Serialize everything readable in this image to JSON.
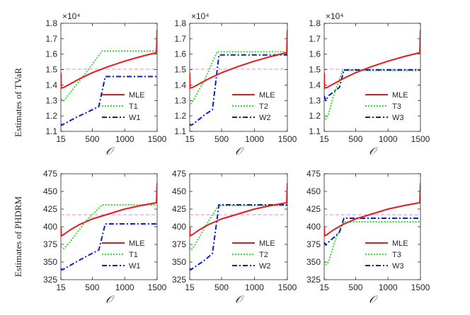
{
  "figure": {
    "shared_xlabel": "𝒪",
    "row_ylabels": [
      "Estimates of TVaR",
      "Estimates of PHDRM"
    ],
    "top_exponent": "×10⁴",
    "colors": {
      "MLE": "#e41a1c",
      "T": "#33dd33",
      "W": "#0b1fbf",
      "ref": "#ee82ee",
      "axis": "#262626"
    }
  },
  "chart_data": [
    {
      "type": "line",
      "title": "",
      "xlabel": "𝒪",
      "ylabel": "Estimates of TVaR",
      "xlim": [
        15,
        1500
      ],
      "xticks": [
        15,
        500,
        1000,
        1500
      ],
      "ylim": [
        1.1,
        1.8
      ],
      "yticks": [
        1.1,
        1.2,
        1.3,
        1.4,
        1.5,
        1.6,
        1.7,
        1.8
      ],
      "yticklabels": [
        "1.1",
        "1.2",
        "1.3",
        "1.4",
        "1.5",
        "1.6",
        "1.7",
        "1.8"
      ],
      "exponent_label": "×10⁴",
      "reference": 1.503,
      "series": [
        {
          "name": "MLE",
          "style": "solid",
          "x": [
            15,
            20,
            60,
            150,
            300,
            500,
            750,
            1000,
            1250,
            1490,
            1495,
            1500
          ],
          "y": [
            1.48,
            1.38,
            1.385,
            1.405,
            1.44,
            1.48,
            1.52,
            1.555,
            1.585,
            1.61,
            1.68,
            1.76
          ]
        },
        {
          "name": "T1",
          "style": "dotted",
          "x": [
            15,
            60,
            120,
            400,
            650,
            1500
          ],
          "y": [
            1.31,
            1.3,
            1.33,
            1.48,
            1.62,
            1.62
          ]
        },
        {
          "name": "W1",
          "style": "dashdot",
          "x": [
            15,
            30,
            50,
            250,
            450,
            600,
            700,
            1500
          ],
          "y": [
            1.15,
            1.14,
            1.145,
            1.19,
            1.23,
            1.26,
            1.455,
            1.455
          ]
        }
      ],
      "legend": {
        "position": "lower-right",
        "entries": [
          "MLE",
          "T1",
          "W1"
        ]
      }
    },
    {
      "type": "line",
      "title": "",
      "xlabel": "𝒪",
      "ylabel": "",
      "xlim": [
        15,
        1500
      ],
      "xticks": [
        15,
        500,
        1000,
        1500
      ],
      "ylim": [
        1.1,
        1.8
      ],
      "yticks": [
        1.1,
        1.2,
        1.3,
        1.4,
        1.5,
        1.6,
        1.7,
        1.8
      ],
      "yticklabels": [
        "1.1",
        "1.2",
        "1.3",
        "1.4",
        "1.5",
        "1.6",
        "1.7",
        "1.8"
      ],
      "exponent_label": "×10⁴",
      "reference": 1.503,
      "series": [
        {
          "name": "MLE",
          "style": "solid",
          "x": [
            15,
            20,
            60,
            150,
            300,
            500,
            750,
            1000,
            1250,
            1490,
            1495,
            1500
          ],
          "y": [
            1.48,
            1.38,
            1.385,
            1.405,
            1.44,
            1.48,
            1.52,
            1.555,
            1.585,
            1.61,
            1.68,
            1.76
          ]
        },
        {
          "name": "T2",
          "style": "dotted",
          "x": [
            15,
            40,
            80,
            250,
            430,
            1500
          ],
          "y": [
            1.3,
            1.28,
            1.31,
            1.44,
            1.615,
            1.615
          ]
        },
        {
          "name": "W2",
          "style": "dashdot",
          "x": [
            15,
            30,
            60,
            250,
            360,
            460,
            1500
          ],
          "y": [
            1.15,
            1.14,
            1.145,
            1.21,
            1.24,
            1.595,
            1.595
          ]
        }
      ],
      "legend": {
        "position": "lower-right",
        "entries": [
          "MLE",
          "T2",
          "W2"
        ]
      }
    },
    {
      "type": "line",
      "title": "",
      "xlabel": "𝒪",
      "ylabel": "",
      "xlim": [
        15,
        1500
      ],
      "xticks": [
        15,
        500,
        1000,
        1500
      ],
      "ylim": [
        1.1,
        1.8
      ],
      "yticks": [
        1.1,
        1.2,
        1.3,
        1.4,
        1.5,
        1.6,
        1.7,
        1.8
      ],
      "yticklabels": [
        "1.1",
        "1.2",
        "1.3",
        "1.4",
        "1.5",
        "1.6",
        "1.7",
        "1.8"
      ],
      "exponent_label": "×10⁴",
      "reference": 1.503,
      "series": [
        {
          "name": "MLE",
          "style": "solid",
          "x": [
            15,
            20,
            60,
            150,
            300,
            500,
            750,
            1000,
            1250,
            1490,
            1495,
            1500
          ],
          "y": [
            1.48,
            1.38,
            1.385,
            1.405,
            1.44,
            1.48,
            1.52,
            1.555,
            1.585,
            1.61,
            1.68,
            1.76
          ]
        },
        {
          "name": "T3",
          "style": "dotted",
          "x": [
            15,
            40,
            80,
            150,
            300,
            1500
          ],
          "y": [
            1.2,
            1.18,
            1.21,
            1.32,
            1.495,
            1.495
          ]
        },
        {
          "name": "W3",
          "style": "dashdot",
          "x": [
            15,
            40,
            80,
            250,
            320,
            1500
          ],
          "y": [
            1.33,
            1.3,
            1.33,
            1.385,
            1.498,
            1.498
          ]
        }
      ],
      "legend": {
        "position": "lower-right",
        "entries": [
          "MLE",
          "T3",
          "W3"
        ]
      }
    },
    {
      "type": "line",
      "title": "",
      "xlabel": "𝒪",
      "ylabel": "Estimates of PHDRM",
      "xlim": [
        15,
        1500
      ],
      "xticks": [
        15,
        500,
        1000,
        1500
      ],
      "ylim": [
        325,
        475
      ],
      "yticks": [
        325,
        350,
        375,
        400,
        425,
        450,
        475
      ],
      "yticklabels": [
        "325",
        "350",
        "375",
        "400",
        "425",
        "450",
        "475"
      ],
      "exponent_label": "",
      "reference": 417,
      "series": [
        {
          "name": "MLE",
          "style": "solid",
          "x": [
            15,
            20,
            60,
            150,
            300,
            500,
            750,
            1000,
            1250,
            1490,
            1495,
            1500
          ],
          "y": [
            400,
            387,
            389,
            395,
            403,
            411,
            418,
            425,
            430,
            434,
            448,
            462
          ]
        },
        {
          "name": "T1",
          "style": "dotted",
          "x": [
            15,
            60,
            150,
            400,
            650,
            1500
          ],
          "y": [
            372,
            369,
            378,
            408,
            431,
            431
          ]
        },
        {
          "name": "W1",
          "style": "dashdot",
          "x": [
            15,
            30,
            60,
            250,
            450,
            600,
            700,
            1500
          ],
          "y": [
            341,
            339,
            340,
            350,
            360,
            367,
            404,
            404
          ]
        }
      ],
      "legend": {
        "position": "lower-right",
        "entries": [
          "MLE",
          "T1",
          "W1"
        ]
      }
    },
    {
      "type": "line",
      "title": "",
      "xlabel": "𝒪",
      "ylabel": "",
      "xlim": [
        15,
        1500
      ],
      "xticks": [
        15,
        500,
        1000,
        1500
      ],
      "ylim": [
        325,
        475
      ],
      "yticks": [
        325,
        350,
        375,
        400,
        425,
        450,
        475
      ],
      "yticklabels": [
        "325",
        "350",
        "375",
        "400",
        "425",
        "450",
        "475"
      ],
      "exponent_label": "",
      "reference": 417,
      "series": [
        {
          "name": "MLE",
          "style": "solid",
          "x": [
            15,
            20,
            60,
            150,
            300,
            500,
            750,
            1000,
            1250,
            1490,
            1495,
            1500
          ],
          "y": [
            400,
            387,
            389,
            395,
            403,
            411,
            418,
            425,
            430,
            434,
            448,
            462
          ]
        },
        {
          "name": "T2",
          "style": "dotted",
          "x": [
            15,
            40,
            80,
            250,
            450,
            1500
          ],
          "y": [
            370,
            367,
            372,
            400,
            430,
            430
          ]
        },
        {
          "name": "W2",
          "style": "dashdot",
          "x": [
            15,
            30,
            60,
            250,
            360,
            460,
            1500
          ],
          "y": [
            341,
            339,
            341,
            353,
            362,
            431,
            431
          ]
        }
      ],
      "legend": {
        "position": "lower-right",
        "entries": [
          "MLE",
          "T2",
          "W2"
        ]
      }
    },
    {
      "type": "line",
      "title": "",
      "xlabel": "𝒪",
      "ylabel": "",
      "xlim": [
        15,
        1500
      ],
      "xticks": [
        15,
        500,
        1000,
        1500
      ],
      "ylim": [
        325,
        475
      ],
      "yticks": [
        325,
        350,
        375,
        400,
        425,
        450,
        475
      ],
      "yticklabels": [
        "325",
        "350",
        "375",
        "400",
        "425",
        "450",
        "475"
      ],
      "exponent_label": "",
      "reference": 417,
      "series": [
        {
          "name": "MLE",
          "style": "solid",
          "x": [
            15,
            20,
            60,
            150,
            300,
            500,
            750,
            1000,
            1250,
            1490,
            1495,
            1500
          ],
          "y": [
            400,
            387,
            389,
            395,
            403,
            411,
            418,
            425,
            430,
            434,
            448,
            462
          ]
        },
        {
          "name": "T3",
          "style": "dotted",
          "x": [
            15,
            40,
            80,
            200,
            320,
            1500
          ],
          "y": [
            350,
            346,
            350,
            385,
            407,
            407
          ]
        },
        {
          "name": "W3",
          "style": "dashdot",
          "x": [
            15,
            40,
            80,
            250,
            320,
            1500
          ],
          "y": [
            378,
            374,
            378,
            392,
            412,
            412
          ]
        }
      ],
      "legend": {
        "position": "lower-right",
        "entries": [
          "MLE",
          "T3",
          "W3"
        ]
      }
    }
  ]
}
